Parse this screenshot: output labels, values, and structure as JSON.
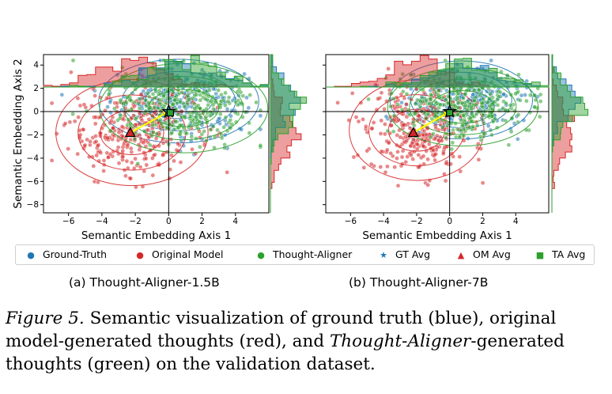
{
  "colors": {
    "gt": "#1f77b4",
    "om": "#d62728",
    "ta": "#2ca02c",
    "arrow": "#ffff00"
  },
  "legend": [
    {
      "label": "Ground-Truth",
      "marker": "dot",
      "color": "#1f77b4"
    },
    {
      "label": "Original Model",
      "marker": "dot",
      "color": "#d62728"
    },
    {
      "label": "Thought-Aligner",
      "marker": "dot",
      "color": "#2ca02c"
    },
    {
      "label": "GT Avg",
      "marker": "star",
      "color": "#1f77b4"
    },
    {
      "label": "OM Avg",
      "marker": "triangle",
      "color": "#d62728"
    },
    {
      "label": "TA Avg",
      "marker": "square",
      "color": "#2ca02c"
    }
  ],
  "subcaptions": {
    "a": "(a) Thought-Aligner-1.5B",
    "b": "(b) Thought-Aligner-7B"
  },
  "caption": {
    "label": "Figure 5.",
    "text_1": " Semantic visualization of ground truth (blue), original model-generated thoughts (red), and ",
    "emph": "Thought-Aligner",
    "text_2": "-generated thoughts (green) on the validation dataset."
  },
  "chart_data": [
    {
      "type": "scatter",
      "title": "",
      "xlabel": "Semantic Embedding Axis 1",
      "ylabel": "Semantic Embedding Axis 2",
      "xlim": [
        -7.5,
        6
      ],
      "ylim": [
        -8.7,
        4.9
      ],
      "xticks": [
        -6,
        -4,
        -2,
        0,
        2,
        4
      ],
      "yticks": [
        -8,
        -6,
        -4,
        -2,
        0,
        2,
        4
      ],
      "reference_lines": {
        "x": 0,
        "y": 0
      },
      "series": [
        {
          "name": "Ground-Truth",
          "center": [
            0.6,
            0.9
          ],
          "spread": [
            2.0,
            1.5
          ],
          "count": 260
        },
        {
          "name": "Original Model",
          "center": [
            -2.2,
            -1.8
          ],
          "spread": [
            1.9,
            1.9
          ],
          "count": 300
        },
        {
          "name": "Thought-Aligner",
          "center": [
            0.9,
            0.3
          ],
          "spread": [
            2.1,
            1.6
          ],
          "count": 320
        }
      ],
      "averages": [
        {
          "name": "GT Avg",
          "x": 0.0,
          "y": 0.0
        },
        {
          "name": "OM Avg",
          "x": -2.3,
          "y": -1.8
        },
        {
          "name": "TA Avg",
          "x": 0.1,
          "y": -0.1
        }
      ],
      "arrow": {
        "from": [
          -2.3,
          -1.8
        ],
        "to": [
          0.0,
          0.0
        ]
      },
      "marginal_histograms": true
    },
    {
      "type": "scatter",
      "title": "",
      "xlabel": "Semantic Embedding Axis 1",
      "ylabel": "",
      "xlim": [
        -7.5,
        6
      ],
      "ylim": [
        -8.7,
        4.9
      ],
      "xticks": [
        -6,
        -4,
        -2,
        0,
        2,
        4
      ],
      "yticks": [
        -8,
        -6,
        -4,
        -2,
        0,
        2,
        4
      ],
      "reference_lines": {
        "x": 0,
        "y": 0
      },
      "series": [
        {
          "name": "Ground-Truth",
          "center": [
            0.7,
            1.0
          ],
          "spread": [
            1.8,
            1.4
          ],
          "count": 260
        },
        {
          "name": "Original Model",
          "center": [
            -2.0,
            -1.6
          ],
          "spread": [
            1.7,
            1.8
          ],
          "count": 300
        },
        {
          "name": "Thought-Aligner",
          "center": [
            0.8,
            0.4
          ],
          "spread": [
            1.9,
            1.4
          ],
          "count": 320
        }
      ],
      "averages": [
        {
          "name": "GT Avg",
          "x": 0.0,
          "y": 0.0
        },
        {
          "name": "OM Avg",
          "x": -2.2,
          "y": -1.8
        },
        {
          "name": "TA Avg",
          "x": 0.0,
          "y": -0.1
        }
      ],
      "arrow": {
        "from": [
          -2.2,
          -1.8
        ],
        "to": [
          0.0,
          0.0
        ]
      },
      "marginal_histograms": true
    }
  ]
}
